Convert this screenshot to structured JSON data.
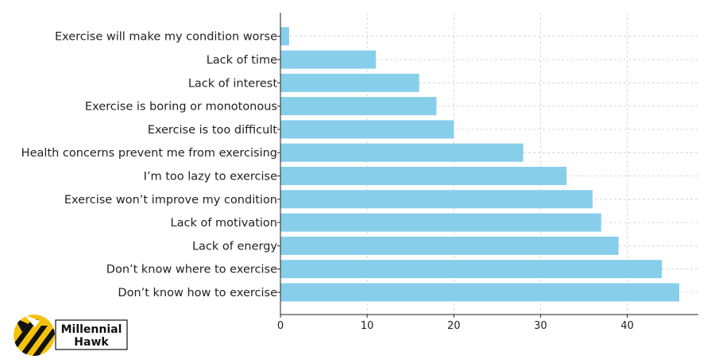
{
  "chart_data": {
    "type": "bar",
    "orientation": "horizontal",
    "categories": [
      "Don’t know how to exercise",
      "Don’t know where to exercise",
      "Lack of energy",
      "Lack of motivation",
      "Exercise won’t improve my condition",
      "I’m too lazy to exercise",
      "Health concerns prevent me from exercising",
      "Exercise is too difficult",
      "Exercise is boring or monotonous",
      "Lack of interest",
      "Lack of time",
      "Exercise will make my condition worse"
    ],
    "values": [
      46,
      44,
      39,
      37,
      36,
      33,
      28,
      20,
      18,
      16,
      11,
      1
    ],
    "xlim": [
      0,
      48.2
    ],
    "xticks": [
      0,
      10,
      20,
      30,
      40
    ],
    "title": "",
    "xlabel": "",
    "ylabel": "",
    "grid": true,
    "bar_color": "#87CEEB"
  },
  "logo": {
    "line1": "Millennial",
    "line2": "Hawk"
  }
}
